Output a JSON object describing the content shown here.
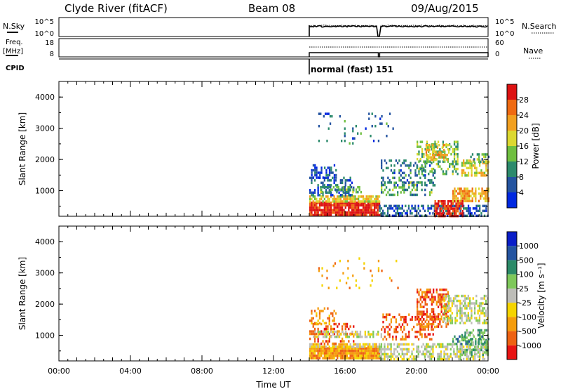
{
  "header": {
    "station": "Clyde River (fitACF)",
    "beam": "Beam 08",
    "date": "09/Aug/2015"
  },
  "top_panels": {
    "nsky_label": "N.Sky",
    "nsky_ticks": [
      "10^5",
      "10^0"
    ],
    "nsearch_label": "N.Search",
    "nsearch_ticks": [
      "10^5",
      "10^0"
    ],
    "freq_label": "Freq.",
    "freq_unit": "[MHz]",
    "freq_ticks": [
      "18",
      "8"
    ],
    "nave_label": "Nave",
    "nave_ticks": [
      "60",
      "0"
    ],
    "cpid_label": "CPID",
    "cpid_text": "normal (fast) 151",
    "data_start_hour": 14.0,
    "data_break_hour": 17.9
  },
  "colors": {
    "power": [
      "#0028e0",
      "#2454a0",
      "#2c8a6c",
      "#6fbf40",
      "#dcd830",
      "#f2a020",
      "#ef6a12",
      "#dd1212"
    ],
    "velocity": [
      "#e81414",
      "#ee6212",
      "#f59c0c",
      "#f5d400",
      "#bdbdb8",
      "#7ec85a",
      "#2b8a68",
      "#2454a0",
      "#0a1ec8"
    ],
    "ground_scatter": "#bdbdb8"
  },
  "chart_data": [
    {
      "type": "heatmap",
      "name": "power",
      "ylabel": "Slant Range [km]",
      "yticks": [
        1000,
        2000,
        3000,
        4000
      ],
      "ylim": [
        180,
        4500
      ],
      "xlim": [
        0,
        24
      ],
      "colorbar": {
        "label": "Power [dB]",
        "ticks": [
          "4",
          "8",
          "12",
          "16",
          "20",
          "24",
          "28"
        ],
        "range": [
          0,
          32
        ]
      },
      "regions": [
        {
          "x0": 14.0,
          "x1": 17.9,
          "y0": 200,
          "y1": 650,
          "value": 30,
          "density": 0.95
        },
        {
          "x0": 14.0,
          "x1": 17.9,
          "y0": 650,
          "y1": 850,
          "value": 18,
          "density": 0.85
        },
        {
          "x0": 14.0,
          "x1": 16.5,
          "y0": 850,
          "y1": 1450,
          "value": 6,
          "density": 0.4
        },
        {
          "x0": 14.1,
          "x1": 15.5,
          "y0": 1450,
          "y1": 1850,
          "value": 4,
          "density": 0.45
        },
        {
          "x0": 14.6,
          "x1": 17.0,
          "y0": 950,
          "y1": 1150,
          "value": 12,
          "density": 0.55
        },
        {
          "x0": 17.9,
          "x1": 24.0,
          "y0": 200,
          "y1": 550,
          "value": 6,
          "density": 0.55
        },
        {
          "x0": 18.0,
          "x1": 20.8,
          "y0": 850,
          "y1": 1300,
          "value": 12,
          "density": 0.45
        },
        {
          "x0": 18.0,
          "x1": 21.0,
          "y0": 1200,
          "y1": 2000,
          "value": 8,
          "density": 0.3
        },
        {
          "x0": 20.0,
          "x1": 22.3,
          "y0": 1500,
          "y1": 2600,
          "value": 14,
          "density": 0.45
        },
        {
          "x0": 20.5,
          "x1": 21.8,
          "y0": 2000,
          "y1": 2500,
          "value": 20,
          "density": 0.5
        },
        {
          "x0": 21.0,
          "x1": 22.6,
          "y0": 200,
          "y1": 700,
          "value": 30,
          "density": 0.7
        },
        {
          "x0": 22.0,
          "x1": 24.0,
          "y0": 700,
          "y1": 1100,
          "value": 22,
          "density": 0.7
        },
        {
          "x0": 22.5,
          "x1": 24.0,
          "y0": 1500,
          "y1": 2000,
          "value": 18,
          "density": 0.6
        },
        {
          "x0": 23.0,
          "x1": 24.0,
          "y0": 1900,
          "y1": 2200,
          "value": 12,
          "density": 0.5
        },
        {
          "x0": 14.5,
          "x1": 19.0,
          "y0": 2500,
          "y1": 3500,
          "value": 8,
          "density": 0.07
        }
      ]
    },
    {
      "type": "heatmap",
      "name": "velocity",
      "ylabel": "Slant Range [km]",
      "yticks": [
        1000,
        2000,
        3000,
        4000
      ],
      "ylim": [
        180,
        4500
      ],
      "xlim": [
        0,
        24
      ],
      "xlabel": "Time UT",
      "xticks": [
        "00:00",
        "04:00",
        "08:00",
        "12:00",
        "16:00",
        "20:00",
        "00:00"
      ],
      "colorbar": {
        "label": "Velocity [m s⁻¹]",
        "ticks": [
          "-1000",
          "-500",
          "-100",
          "-25",
          "25",
          "100",
          "500",
          "1000"
        ],
        "bins": 9
      },
      "regions": [
        {
          "x0": 14.0,
          "x1": 17.9,
          "y0": 280,
          "y1": 620,
          "value_bin": 2,
          "density": 0.95
        },
        {
          "x0": 14.0,
          "x1": 17.9,
          "y0": 620,
          "y1": 750,
          "value_bin": 3,
          "density": 0.8
        },
        {
          "x0": 14.0,
          "x1": 16.5,
          "y0": 750,
          "y1": 1400,
          "value_bin": 1,
          "density": 0.35
        },
        {
          "x0": 14.0,
          "x1": 15.5,
          "y0": 1400,
          "y1": 1900,
          "value_bin": 2,
          "density": 0.35
        },
        {
          "x0": 14.2,
          "x1": 18.0,
          "y0": 950,
          "y1": 1150,
          "value_bin": 4,
          "density": 0.55
        },
        {
          "x0": 17.9,
          "x1": 24.0,
          "y0": 200,
          "y1": 750,
          "value_bin": 4,
          "density": 0.55
        },
        {
          "x0": 18.0,
          "x1": 21.0,
          "y0": 850,
          "y1": 1700,
          "value_bin": 1,
          "density": 0.35
        },
        {
          "x0": 20.0,
          "x1": 21.8,
          "y0": 1300,
          "y1": 2500,
          "value_bin": 1,
          "density": 0.5
        },
        {
          "x0": 21.5,
          "x1": 24.0,
          "y0": 1400,
          "y1": 2300,
          "value_bin": 4,
          "density": 0.55
        },
        {
          "x0": 22.5,
          "x1": 24.0,
          "y0": 400,
          "y1": 1200,
          "value_bin": 5,
          "density": 0.45
        },
        {
          "x0": 22.0,
          "x1": 24.0,
          "y0": 700,
          "y1": 1000,
          "value_bin": 6,
          "density": 0.4
        },
        {
          "x0": 14.5,
          "x1": 19.0,
          "y0": 2500,
          "y1": 3500,
          "value_bin": 2,
          "density": 0.07
        }
      ]
    }
  ]
}
